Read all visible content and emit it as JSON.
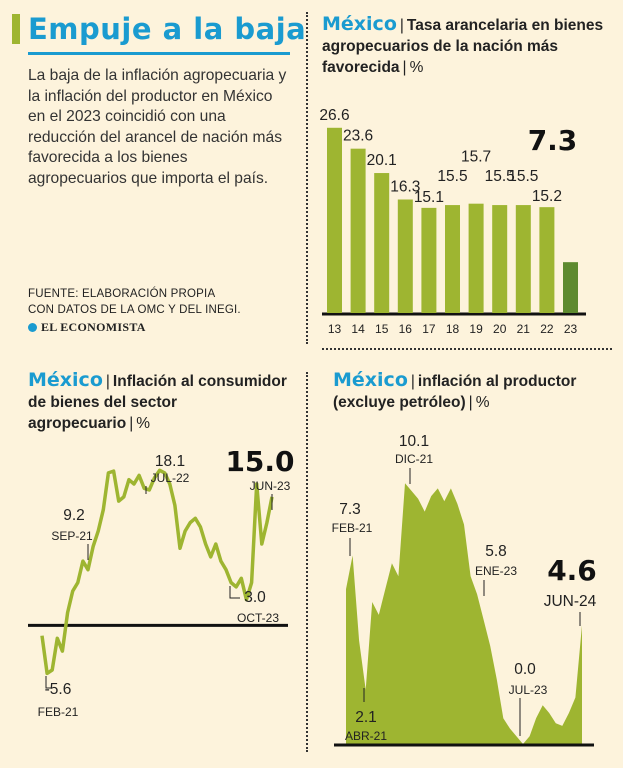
{
  "intro": {
    "title": "Empuje a la baja",
    "text": "La baja de la inflación agropecuaria y la inflación del productor en México en el 2023 coincidió con una reducción del arancel de nación más favorecida a los bienes agropecuarios que importa el país.",
    "source_line1": "FUENTE: ELABORACIÓN PROPIA",
    "source_line2": "CON DATOS DE LA OMC Y DEL INEGI.",
    "logo": "EL ECONOMISTA"
  },
  "colors": {
    "accent_blue": "#1a9bd0",
    "olive": "#9eb531",
    "highlight_green": "#5e8a2f",
    "background": "#fdf3dc"
  },
  "panels": {
    "tariff": {
      "country": "México",
      "title": "Tasa arancelaria en bienes agropecuarios de la nación más favorecida",
      "unit": "%"
    },
    "cpi": {
      "country": "México",
      "title": "Inflación al consumidor de bienes del sector agropecuario",
      "unit": "%"
    },
    "ppi": {
      "country": "México",
      "title": "inflación al productor (excluye petróleo)",
      "unit": "%"
    }
  },
  "chart_data": [
    {
      "type": "bar",
      "categories": [
        "13",
        "14",
        "15",
        "16",
        "17",
        "18",
        "19",
        "20",
        "21",
        "22",
        "23"
      ],
      "values": [
        26.6,
        23.6,
        20.1,
        16.3,
        15.1,
        15.5,
        15.7,
        15.5,
        15.5,
        15.2,
        7.3
      ],
      "value_labels": [
        "26.6",
        "23.6",
        "20.1",
        "16.3",
        "15.1",
        "15.5",
        "15.7",
        "15.5",
        "15.5",
        "15.2",
        "7.3"
      ],
      "highlight_index": 10,
      "ylim": [
        0,
        27
      ]
    },
    {
      "type": "line",
      "values": [
        -1.2,
        -5.6,
        -5.2,
        -1.5,
        -3.0,
        1.5,
        4.0,
        5.0,
        7.5,
        6.5,
        9.2,
        11.0,
        13.5,
        17.8,
        18.0,
        14.5,
        15.0,
        17.0,
        16.5,
        17.5,
        16.0,
        15.8,
        17.2,
        18.1,
        17.8,
        16.5,
        14.0,
        9.0,
        11.0,
        12.0,
        12.5,
        11.5,
        9.5,
        8.0,
        9.5,
        7.5,
        6.5,
        5.0,
        4.5,
        5.5,
        3.0,
        5.0,
        16.5,
        9.5,
        12.0,
        15.0
      ],
      "ylim": [
        -8,
        20
      ],
      "annotations": [
        {
          "index": 1,
          "value": "-5.6",
          "date": "FEB-21"
        },
        {
          "index": 10,
          "value": "9.2",
          "date": "SEP-21"
        },
        {
          "index": 23,
          "value": "18.1",
          "date": "JUL-22"
        },
        {
          "index": 40,
          "value": "3.0",
          "date": "OCT-23"
        },
        {
          "index": 45,
          "value": "15.0",
          "date": "JUN-23",
          "emphasis": true
        }
      ]
    },
    {
      "type": "area",
      "values": [
        6.0,
        7.3,
        4.0,
        2.1,
        5.5,
        5.0,
        6.0,
        7.0,
        6.5,
        10.1,
        9.8,
        9.5,
        9.0,
        9.6,
        9.9,
        9.4,
        9.9,
        9.3,
        8.5,
        6.5,
        5.8,
        4.8,
        3.8,
        2.5,
        1.0,
        0.6,
        0.3,
        0.0,
        0.3,
        1.0,
        1.5,
        1.2,
        0.8,
        0.7,
        1.2,
        1.8,
        4.6
      ],
      "ylim": [
        0,
        11
      ],
      "annotations": [
        {
          "index": 1,
          "value": "7.3",
          "date": "FEB-21"
        },
        {
          "index": 3,
          "value": "2.1",
          "date": "ABR-21"
        },
        {
          "index": 9,
          "value": "10.1",
          "date": "DIC-21"
        },
        {
          "index": 20,
          "value": "5.8",
          "date": "ENE-23"
        },
        {
          "index": 27,
          "value": "0.0",
          "date": "JUL-23"
        },
        {
          "index": 36,
          "value": "4.6",
          "date": "JUN-24",
          "emphasis": true
        }
      ]
    }
  ]
}
